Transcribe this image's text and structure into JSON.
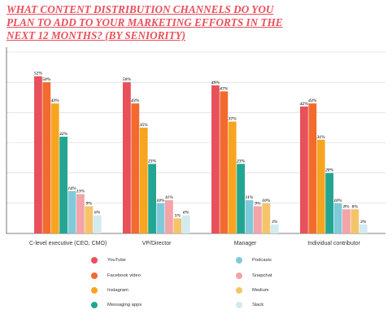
{
  "title_lines": [
    "WHAT CONTENT DISTRIBUTION CHANNELS DO YOU",
    "PLAN TO ADD TO YOUR MARKETING EFFORTS IN THE",
    "NEXT 12 MONTHS? (BY SENIORITY)"
  ],
  "chart_data": {
    "type": "bar",
    "categories": [
      "C-level executive (CEO, CMO)",
      "VP/Director",
      "Manager",
      "Individual contributor"
    ],
    "ylim": [
      0,
      60
    ],
    "grid": true,
    "legend_placement": "bottom",
    "series": [
      {
        "name": "YouTube",
        "color": "#e8505b",
        "values": [
          52,
          50,
          49,
          42
        ]
      },
      {
        "name": "Facebook video",
        "color": "#f26a2e",
        "values": [
          50,
          43,
          47,
          43
        ]
      },
      {
        "name": "Instagram",
        "color": "#f7a520",
        "values": [
          43,
          35,
          37,
          31
        ]
      },
      {
        "name": "Messaging apps",
        "color": "#22a692",
        "values": [
          32,
          23,
          23,
          20
        ]
      },
      {
        "name": "Podcasts",
        "color": "#7fc9d9",
        "values": [
          14,
          10,
          11,
          10
        ]
      },
      {
        "name": "Snapchat",
        "color": "#f4a3a8",
        "values": [
          13,
          11,
          9,
          8
        ]
      },
      {
        "name": "Medium",
        "color": "#f5c46a",
        "values": [
          9,
          5,
          10,
          8
        ]
      },
      {
        "name": "Slack",
        "color": "#d2eaf0",
        "values": [
          6,
          6,
          3,
          3
        ]
      }
    ]
  }
}
